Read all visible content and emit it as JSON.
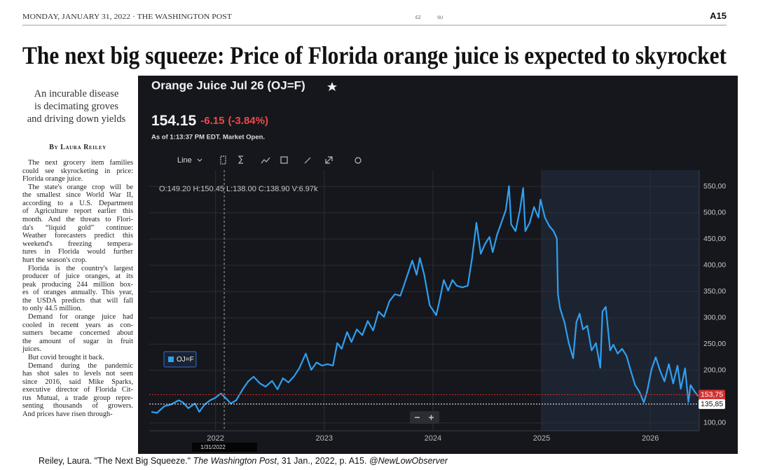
{
  "header": {
    "dateline": "MONDAY, JANUARY 31, 2022 · THE WASHINGTON POST",
    "edition_marks": [
      "EZ",
      "SU"
    ],
    "page": "A15"
  },
  "headline": "The next big squeeze: Price of Florida orange juice is expected to skyrocket",
  "article": {
    "deck": [
      "An incurable disease",
      "is decimating groves",
      "and driving down yields"
    ],
    "byline": "By Laura Reiley",
    "paragraphs": [
      [
        "The next grocery item families",
        "could see skyrocketing in price:",
        "Florida orange juice."
      ],
      [
        "The state's orange crop will be",
        "the smallest since World War II,",
        "according to a U.S. Department",
        "of Agriculture report earlier this",
        "month. And the threats to Flori-",
        "da's “liquid gold” continue:",
        "Weather forecasters predict this",
        "weekend's freezing tempera-",
        "tures in Florida would further",
        "hurt the season's crop."
      ],
      [
        "Florida is the country's largest",
        "producer of juice oranges, at its",
        "peak producing 244 million box-",
        "es of oranges annually. This year,",
        "the USDA predicts that will fall",
        "to only 44.5 million."
      ],
      [
        "Demand for orange juice had",
        "cooled in recent years as con-",
        "sumers became concerned about",
        "the amount of sugar in fruit",
        "juices."
      ],
      [
        "But covid brought it back."
      ],
      [
        "Demand during the pandemic",
        "has shot sales to levels not seen",
        "since 2016, said Mike Sparks,",
        "executive director of Florida Cit-",
        "rus Mutual, a trade group repre-",
        "senting thousands of growers.",
        "And prices have risen through-"
      ]
    ]
  },
  "caption": [
    "Reiley, Laura. \"The Next Big Squeeze.\"",
    "The Washington Post",
    ", 31 Jan., 2022, p. A15.",
    "@NewLowObserver"
  ],
  "chart_data": {
    "type": "line",
    "title": "Orange Juice Jul 26 (OJ=F)",
    "quote": {
      "last": "154.15",
      "change": "-6.15",
      "change_pct": "(-3.84%)",
      "as_of": "As of 1:13:37 PM EDT. Market Open."
    },
    "chart_style": "Line",
    "ohlc": "O:149.20 H:150.45 L:138.00 C:138.90 V:6.97k",
    "x": [
      2021.41,
      2021.46,
      2021.53,
      2021.59,
      2021.66,
      2021.7,
      2021.75,
      2021.81,
      2021.85,
      2021.9,
      2021.95,
      2022.0,
      2022.05,
      2022.09,
      2022.14,
      2022.19,
      2022.25,
      2022.3,
      2022.35,
      2022.41,
      2022.46,
      2022.52,
      2022.57,
      2022.62,
      2022.67,
      2022.72,
      2022.77,
      2022.83,
      2022.88,
      2022.93,
      2022.98,
      2023.03,
      2023.08,
      2023.12,
      2023.16,
      2023.21,
      2023.25,
      2023.3,
      2023.35,
      2023.4,
      2023.45,
      2023.5,
      2023.55,
      2023.6,
      2023.65,
      2023.7,
      2023.75,
      2023.81,
      2023.85,
      2023.88,
      2023.92,
      2023.97,
      2024.03,
      2024.06,
      2024.1,
      2024.14,
      2024.18,
      2024.22,
      2024.27,
      2024.32,
      2024.36,
      2024.4,
      2024.44,
      2024.48,
      2024.52,
      2024.55,
      2024.59,
      2024.63,
      2024.67,
      2024.7,
      2024.72,
      2024.76,
      2024.8,
      2024.83,
      2024.85,
      2024.89,
      2024.93,
      2024.97,
      2024.99,
      2025.03,
      2025.07,
      2025.11,
      2025.14,
      2025.15,
      2025.17,
      2025.21,
      2025.25,
      2025.29,
      2025.32,
      2025.35,
      2025.38,
      2025.42,
      2025.46,
      2025.5,
      2025.54,
      2025.56,
      2025.59,
      2025.63,
      2025.66,
      2025.7,
      2025.74,
      2025.78,
      2025.82,
      2025.86,
      2025.9,
      2025.94,
      2025.97,
      2026.01,
      2026.05,
      2026.09,
      2026.13,
      2026.17,
      2026.21,
      2026.25,
      2026.28,
      2026.32,
      2026.35,
      2026.37,
      2026.41,
      2026.44
    ],
    "series": [
      {
        "name": "OJ=F",
        "color": "#2f9ff0",
        "values": [
          121,
          119,
          132,
          135,
          143,
          139,
          128,
          137,
          121,
          135,
          143,
          148,
          156,
          148,
          137,
          143,
          164,
          179,
          188,
          175,
          169,
          180,
          164,
          185,
          177,
          188,
          204,
          232,
          201,
          215,
          209,
          212,
          209,
          252,
          241,
          273,
          254,
          278,
          267,
          294,
          276,
          312,
          302,
          332,
          345,
          342,
          372,
          409,
          382,
          414,
          382,
          324,
          305,
          332,
          372,
          352,
          372,
          361,
          358,
          361,
          414,
          481,
          422,
          441,
          454,
          425,
          458,
          481,
          505,
          551,
          478,
          465,
          505,
          547,
          465,
          481,
          511,
          491,
          525,
          491,
          475,
          465,
          451,
          345,
          318,
          292,
          252,
          223,
          292,
          308,
          278,
          285,
          238,
          252,
          205,
          312,
          321,
          238,
          249,
          232,
          241,
          228,
          199,
          172,
          159,
          139,
          159,
          201,
          225,
          199,
          179,
          212,
          175,
          209,
          165,
          204,
          140,
          172,
          159,
          151
        ]
      }
    ],
    "xlim": [
      2021.39,
      2026.45
    ],
    "xticks": [
      2022,
      2023,
      2024,
      2025,
      2026
    ],
    "ylim": [
      85,
      581
    ],
    "yticks": [
      {
        "value": 100,
        "label": "100,00"
      },
      {
        "value": 200,
        "label": "200,00"
      },
      {
        "value": 250,
        "label": "250,00"
      },
      {
        "value": 300,
        "label": "300,00"
      },
      {
        "value": 350,
        "label": "350,00"
      },
      {
        "value": 400,
        "label": "400,00"
      },
      {
        "value": 450,
        "label": "450,00"
      },
      {
        "value": 500,
        "label": "500,00"
      },
      {
        "value": 550,
        "label": "550,00"
      }
    ],
    "grid": true,
    "price_lines": [
      {
        "value": 153.75,
        "label": "153,75",
        "color": "#d32f2f"
      },
      {
        "value": 135.85,
        "label": "135,85",
        "color": "#ffffff"
      }
    ],
    "crosshair": {
      "x": 2022.08,
      "label": "1/31/2022"
    },
    "shaded_xrange": [
      2025,
      2026.45
    ]
  }
}
